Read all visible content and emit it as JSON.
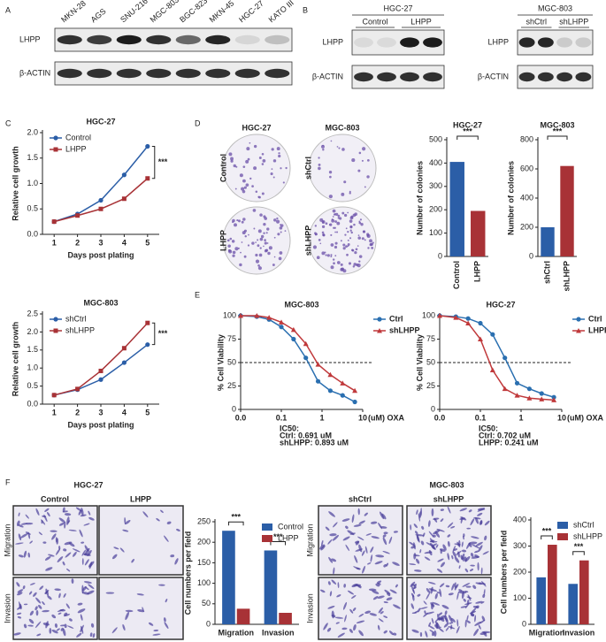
{
  "panel_labels": [
    "A",
    "B",
    "C",
    "D",
    "E",
    "F"
  ],
  "blot_a": {
    "lanes": [
      "MKN-28",
      "AGS",
      "SNU-216",
      "MGC-803",
      "BGC-823",
      "MKN-45",
      "HGC-27",
      "KATO III"
    ],
    "rows": [
      "LHPP",
      "β-ACTIN"
    ]
  },
  "blot_b": [
    {
      "title": "HGC-27",
      "groups": [
        "Control",
        "LHPP"
      ],
      "rows": [
        "LHPP",
        "β-ACTIN"
      ]
    },
    {
      "title": "MGC-803",
      "groups": [
        "shCtrl",
        "shLHPP"
      ],
      "rows": [
        "LHPP",
        "β-ACTIN"
      ]
    }
  ],
  "colony_images": {
    "columns": [
      "HGC-27",
      "MGC-803"
    ],
    "labels": [
      "Control",
      "shCtrl",
      "LHPP",
      "shLHPP"
    ]
  },
  "transwell": [
    {
      "title": "HGC-27",
      "columns": [
        "Control",
        "LHPP"
      ],
      "rows": [
        "Migration",
        "Invasion"
      ]
    },
    {
      "title": "MGC-803",
      "columns": [
        "shCtrl",
        "shLHPP"
      ],
      "rows": [
        "Migration",
        "Invasion"
      ]
    }
  ],
  "chart_data": [
    {
      "type": "line",
      "title": "HGC-27",
      "x": [
        1,
        2,
        3,
        4,
        5
      ],
      "xlim": [
        0.5,
        5.5
      ],
      "xticks": [
        1,
        2,
        3,
        4,
        5
      ],
      "ylim": [
        0,
        2
      ],
      "yticks": [
        {
          "value": 0,
          "label": "0.0"
        },
        {
          "value": 0.5,
          "label": "0.5"
        },
        {
          "value": 1,
          "label": "1.0"
        },
        {
          "value": 1.5,
          "label": "1.5"
        },
        {
          "value": 2,
          "label": "2.0"
        }
      ],
      "xlabel": "Days post plating",
      "ylabel": "Relative cell growth",
      "legend": "upper left",
      "annotation": "***",
      "series": [
        {
          "name": "Control",
          "color": "#2b5ea7",
          "marker": "circle",
          "values": [
            0.25,
            0.4,
            0.67,
            1.17,
            1.73
          ]
        },
        {
          "name": "LHPP",
          "color": "#a83236",
          "marker": "square",
          "values": [
            0.25,
            0.37,
            0.5,
            0.7,
            1.1
          ]
        }
      ]
    },
    {
      "type": "line",
      "title": "MGC-803",
      "x": [
        1,
        2,
        3,
        4,
        5
      ],
      "xlim": [
        0.5,
        5.5
      ],
      "xticks": [
        1,
        2,
        3,
        4,
        5
      ],
      "ylim": [
        0,
        2.5
      ],
      "yticks": [
        {
          "value": 0,
          "label": "0.0"
        },
        {
          "value": 0.5,
          "label": "0.5"
        },
        {
          "value": 1,
          "label": "1.0"
        },
        {
          "value": 1.5,
          "label": "1.5"
        },
        {
          "value": 2,
          "label": "2.0"
        },
        {
          "value": 2.5,
          "label": "2.5"
        }
      ],
      "xlabel": "Days post plating",
      "ylabel": "Relative cell growth",
      "legend": "upper left",
      "annotation": "***",
      "series": [
        {
          "name": "shCtrl",
          "color": "#2b5ea7",
          "marker": "circle",
          "values": [
            0.25,
            0.4,
            0.68,
            1.15,
            1.65
          ]
        },
        {
          "name": "shLHPP",
          "color": "#a83236",
          "marker": "square",
          "values": [
            0.25,
            0.42,
            0.92,
            1.55,
            2.25
          ]
        }
      ]
    },
    {
      "type": "bar",
      "title": "HGC-27",
      "categories": [
        "Control",
        "LHPP"
      ],
      "values": [
        405,
        195
      ],
      "colors": [
        "#2b5ea7",
        "#a83236"
      ],
      "ylim": [
        0,
        500
      ],
      "yticks": [
        0,
        100,
        200,
        300,
        400,
        500
      ],
      "ylabel": "Number of colonies",
      "label_rotation": -90,
      "annotation": "***"
    },
    {
      "type": "bar",
      "title": "MGC-803",
      "categories": [
        "shCtrl",
        "shLHPP"
      ],
      "values": [
        200,
        620
      ],
      "colors": [
        "#2b5ea7",
        "#a83236"
      ],
      "ylim": [
        0,
        800
      ],
      "yticks": [
        0,
        200,
        400,
        600,
        800
      ],
      "ylabel": "Number of colonies",
      "label_rotation": -90,
      "annotation": "***"
    },
    {
      "type": "line",
      "title": "MGC-803",
      "log_x": true,
      "x": [
        0.01,
        0.025,
        0.05,
        0.1,
        0.2,
        0.4,
        0.8,
        1.6,
        3.2,
        6.4
      ],
      "xlim": [
        0.01,
        10
      ],
      "xticks": [
        {
          "value": 0.01,
          "label": "0.0"
        },
        0.1,
        1,
        10
      ],
      "x_unit": "(uM) OXA",
      "ylim": [
        0,
        100
      ],
      "yticks": [
        0,
        25,
        50,
        75,
        100
      ],
      "ylabel": "% Cell Viability",
      "reference_line": 50,
      "legend": "right",
      "notes": [
        "IC50:",
        "Ctrl: 0.691 uM",
        "shLHPP: 0.893 uM"
      ],
      "series": [
        {
          "name": "Ctrl",
          "color": "#2a6fb0",
          "marker": "circle",
          "values": [
            100,
            99,
            96,
            88,
            75,
            55,
            30,
            20,
            15,
            8
          ]
        },
        {
          "name": "shLHPP",
          "color": "#c0393b",
          "marker": "triangle",
          "values": [
            100,
            100,
            98,
            93,
            85,
            70,
            48,
            37,
            28,
            20
          ]
        }
      ]
    },
    {
      "type": "line",
      "title": "HGC-27",
      "log_x": true,
      "x": [
        0.01,
        0.025,
        0.05,
        0.1,
        0.2,
        0.4,
        0.8,
        1.6,
        3.2,
        6.4
      ],
      "xlim": [
        0.01,
        10
      ],
      "xticks": [
        {
          "value": 0.01,
          "label": "0.0"
        },
        0.1,
        1,
        10
      ],
      "x_unit": "(uM) OXA",
      "ylim": [
        0,
        100
      ],
      "yticks": [
        0,
        25,
        50,
        75,
        100
      ],
      "ylabel": "% Cell Viability",
      "reference_line": 50,
      "legend": "right",
      "notes": [
        "IC50:",
        "Ctrl: 0.702 uM",
        "LHPP: 0.241 uM"
      ],
      "series": [
        {
          "name": "Ctrl",
          "color": "#2a6fb0",
          "marker": "circle",
          "values": [
            100,
            99,
            97,
            92,
            80,
            55,
            28,
            22,
            17,
            13
          ]
        },
        {
          "name": "LHPP",
          "color": "#c0393b",
          "marker": "triangle",
          "values": [
            100,
            98,
            92,
            75,
            42,
            22,
            15,
            12,
            11,
            10
          ]
        }
      ]
    },
    {
      "type": "grouped_bar",
      "categories": [
        "Migration",
        "Invasion"
      ],
      "ylim": [
        0,
        250
      ],
      "yticks": [
        0,
        50,
        100,
        150,
        200,
        250
      ],
      "ylabel": "Cell numbers per field",
      "legend": "upper right",
      "annotations": [
        "***",
        "***"
      ],
      "series": [
        {
          "name": "Control",
          "color": "#2b5ea7",
          "values": [
            228,
            180
          ]
        },
        {
          "name": "LHPP",
          "color": "#a83236",
          "values": [
            38,
            28
          ]
        }
      ]
    },
    {
      "type": "grouped_bar",
      "categories": [
        "Migration",
        "Invasion"
      ],
      "ylim": [
        0,
        400
      ],
      "yticks": [
        0,
        100,
        200,
        300,
        400
      ],
      "ylabel": "Cell numbers per field",
      "legend": "upper right",
      "annotations": [
        "***",
        "***"
      ],
      "series": [
        {
          "name": "shCtrl",
          "color": "#2b5ea7",
          "values": [
            180,
            155
          ]
        },
        {
          "name": "shLHPP",
          "color": "#a83236",
          "values": [
            305,
            245
          ]
        }
      ]
    }
  ]
}
